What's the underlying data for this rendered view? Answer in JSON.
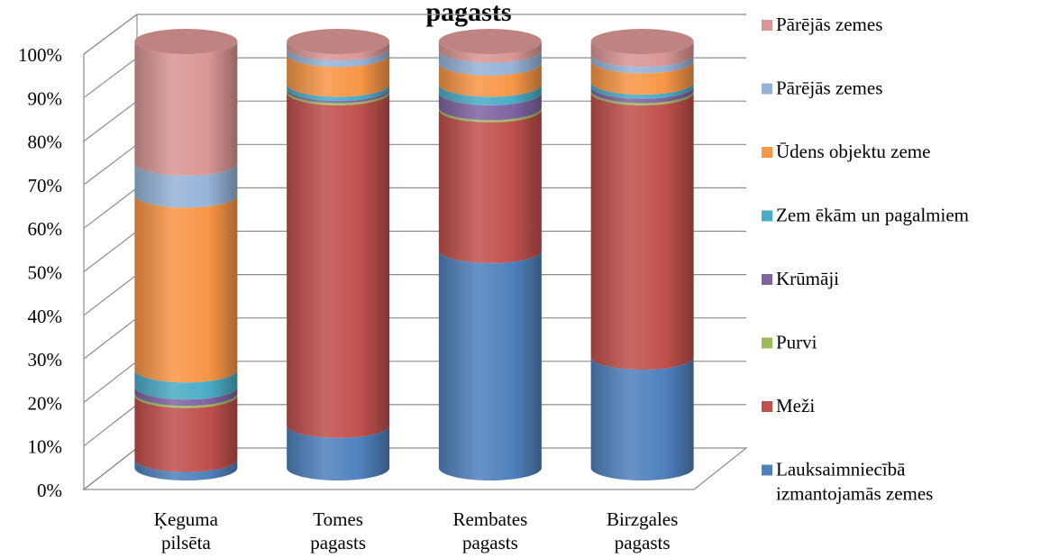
{
  "chart_data": {
    "type": "bar",
    "stacked": true,
    "percent_stacked": true,
    "style": "3d-cylinder",
    "title": "pagasts",
    "ylim": [
      0,
      100
    ],
    "y_ticks": [
      "0%",
      "10%",
      "20%",
      "30%",
      "40%",
      "50%",
      "60%",
      "70%",
      "80%",
      "90%",
      "100%"
    ],
    "grid": true,
    "legend_position": "right",
    "categories": [
      [
        "Ķeguma",
        "pilsēta"
      ],
      [
        "Tomes",
        "pagasts"
      ],
      [
        "Rembates",
        "pagasts"
      ],
      [
        "Birzgales",
        "pagasts"
      ]
    ],
    "series": [
      {
        "name": "Lauksaimniecībā izmantojamās zemes",
        "legend_lines": [
          "Lauksaimniecībā",
          "izmantojamās zemes"
        ],
        "color": "#4F81BD",
        "values": [
          2,
          10,
          51,
          26
        ]
      },
      {
        "name": "Meži",
        "legend_lines": [
          "Meži"
        ],
        "color": "#C0504D",
        "values": [
          15,
          78,
          33,
          62
        ]
      },
      {
        "name": "Purvi",
        "legend_lines": [
          "Purvi"
        ],
        "color": "#9BBB59",
        "values": [
          0.5,
          0.5,
          0.5,
          0.5
        ]
      },
      {
        "name": "Krūmāji",
        "legend_lines": [
          "Krūmāji"
        ],
        "color": "#8064A2",
        "values": [
          1.5,
          0.5,
          3.5,
          1
        ]
      },
      {
        "name": "Zem ēkām un pagalmiem",
        "legend_lines": [
          "Zem ēkām un pagalmiem"
        ],
        "color": "#4BACC6",
        "values": [
          4,
          1,
          2,
          1
        ]
      },
      {
        "name": "Ūdens objektu zeme",
        "legend_lines": [
          "Ūdens objektu zeme"
        ],
        "color": "#F79646",
        "values": [
          41,
          7,
          5,
          5
        ]
      },
      {
        "name": "Pārējās zemes",
        "legend_lines": [
          "Pārējās zemes"
        ],
        "color": "#95B3D7",
        "values": [
          7.5,
          1.5,
          3,
          1.5
        ]
      },
      {
        "name": "Pārējās zemes",
        "legend_lines": [
          "Pārējās zemes"
        ],
        "color": "#D99694",
        "values": [
          28.5,
          1.5,
          2,
          3
        ]
      }
    ]
  }
}
